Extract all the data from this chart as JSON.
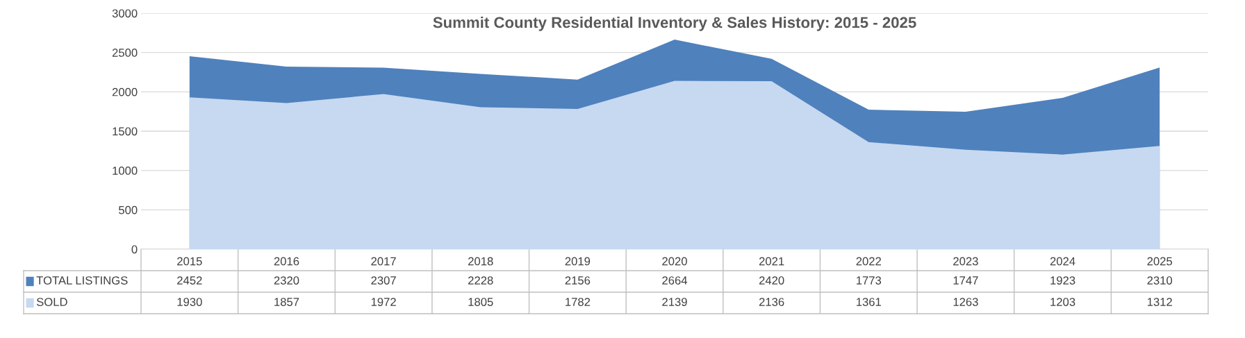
{
  "chart_data": {
    "type": "area",
    "title": "Summit County Residential Inventory & Sales History: 2015 - 2025",
    "categories": [
      "2015",
      "2016",
      "2017",
      "2018",
      "2019",
      "2020",
      "2021",
      "2022",
      "2023",
      "2024",
      "2025"
    ],
    "series": [
      {
        "name": "TOTAL LISTINGS",
        "color": "#4f81bd",
        "values": [
          2452,
          2320,
          2307,
          2228,
          2156,
          2664,
          2420,
          1773,
          1747,
          1923,
          2310
        ]
      },
      {
        "name": "SOLD",
        "color": "#c6d9f1",
        "values": [
          1930,
          1857,
          1972,
          1805,
          1782,
          2139,
          2136,
          1361,
          1263,
          1203,
          1312
        ]
      }
    ],
    "ylim": [
      0,
      3000
    ],
    "yticks": [
      0,
      500,
      1000,
      1500,
      2000,
      2500,
      3000
    ],
    "grid": "y",
    "legend": "bottom left",
    "data_labels": true
  }
}
